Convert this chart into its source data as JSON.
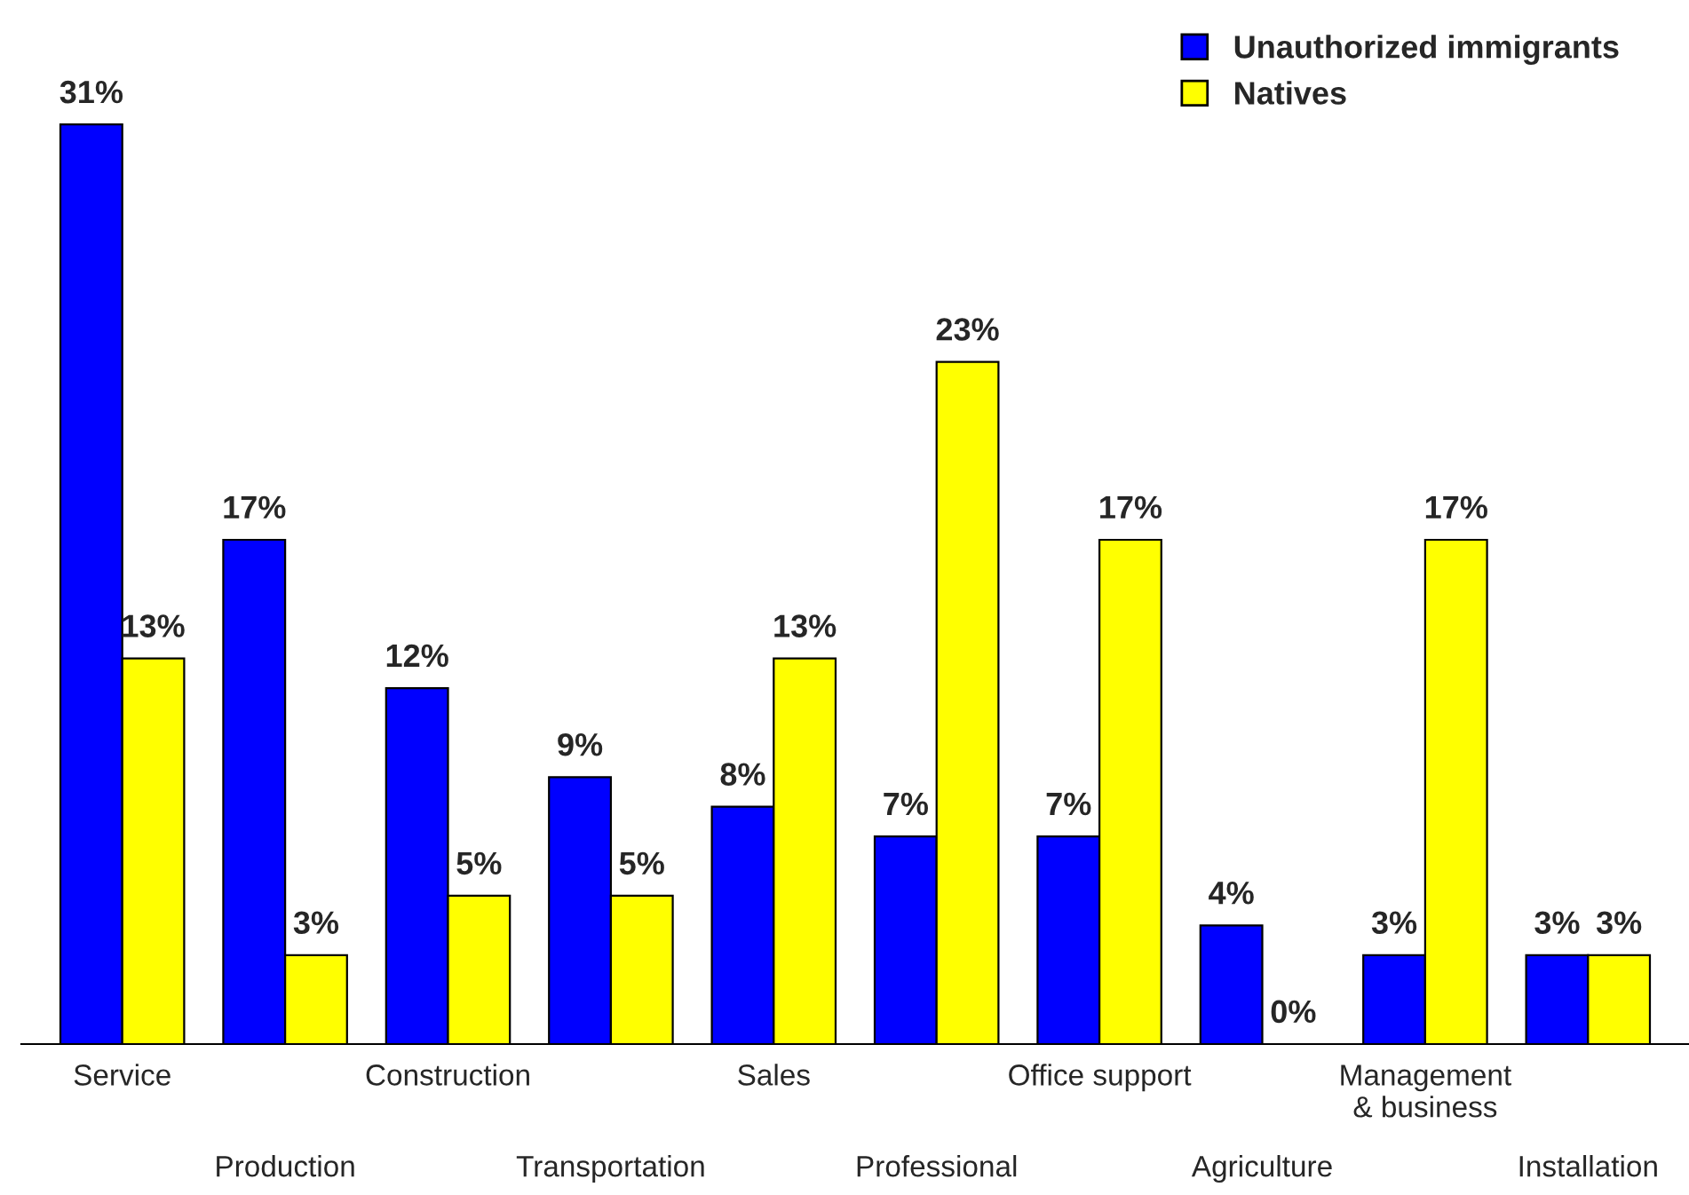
{
  "chart_data": {
    "type": "bar",
    "categories": [
      "Service",
      "Production",
      "Construction",
      "Transportation",
      "Sales",
      "Professional",
      "Office support",
      "Agriculture",
      "Management\n& business",
      "Installation"
    ],
    "series": [
      {
        "name": "Unauthorized immigrants",
        "color": "#0000ff",
        "values": [
          31,
          17,
          12,
          9,
          8,
          7,
          7,
          4,
          3,
          3
        ],
        "value_labels": [
          "31%",
          "17%",
          "12%",
          "9%",
          "8%",
          "7%",
          "7%",
          "4%",
          "3%",
          "3%"
        ]
      },
      {
        "name": "Natives",
        "color": "#ffff00",
        "values": [
          13,
          3,
          5,
          5,
          13,
          23,
          17,
          0,
          17,
          3
        ],
        "value_labels": [
          "13%",
          "3%",
          "5%",
          "5%",
          "13%",
          "23%",
          "17%",
          "0%",
          "17%",
          "3%"
        ]
      }
    ],
    "ylim": [
      0,
      34
    ],
    "tick_labels": "x",
    "grid": false,
    "legend": "top right"
  }
}
